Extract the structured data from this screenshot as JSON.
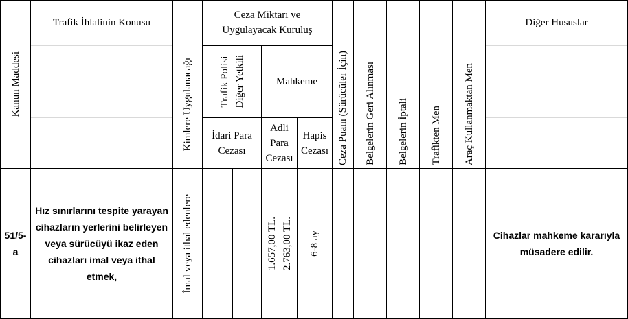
{
  "header": {
    "kanun_maddesi": "Kanun Maddesi",
    "konu": "Trafik İhlalinin Konusu",
    "kimlere": "Kimlere Uygulanacağı",
    "ceza_line1": "Ceza Miktarı ve",
    "ceza_line2": "Uygulayacak Kuruluş",
    "trafik_polisi_line1": "Trafik Polisi",
    "trafik_polisi_line2": "Diğer Yetkili",
    "mahkeme": "Mahkeme",
    "idari_para": "İdari Para Cezası",
    "adli_para": "Adli Para Cezası",
    "hapis": "Hapis Cezası",
    "ceza_puani": "Ceza Puanı (Sürücüler İçin)",
    "belgelerin_geri": "Belgelerin Geri Alınması",
    "belgelerin_iptali": "Belgelerin İptali",
    "trafikten_men": "Trafikten Men",
    "arac_kullanmaktan": "Araç Kullanmaktan Men",
    "diger_hususlar": "Diğer Hususlar"
  },
  "row": {
    "madde": "51/5-a",
    "konu": "Hız sınırlarını tespite yarayan cihazların yerlerini belirleyen veya sürücüyü ikaz eden cihazları imal veya ithal etmek,",
    "kimlere": "İmal veya ithal edenlere",
    "adli_para_1": "1.657,00 TL.",
    "adli_para_2": "2.763,00 TL.",
    "hapis": "6-8 ay",
    "diger": "Cihazlar mahkeme kararıyla müsadere edilir."
  }
}
